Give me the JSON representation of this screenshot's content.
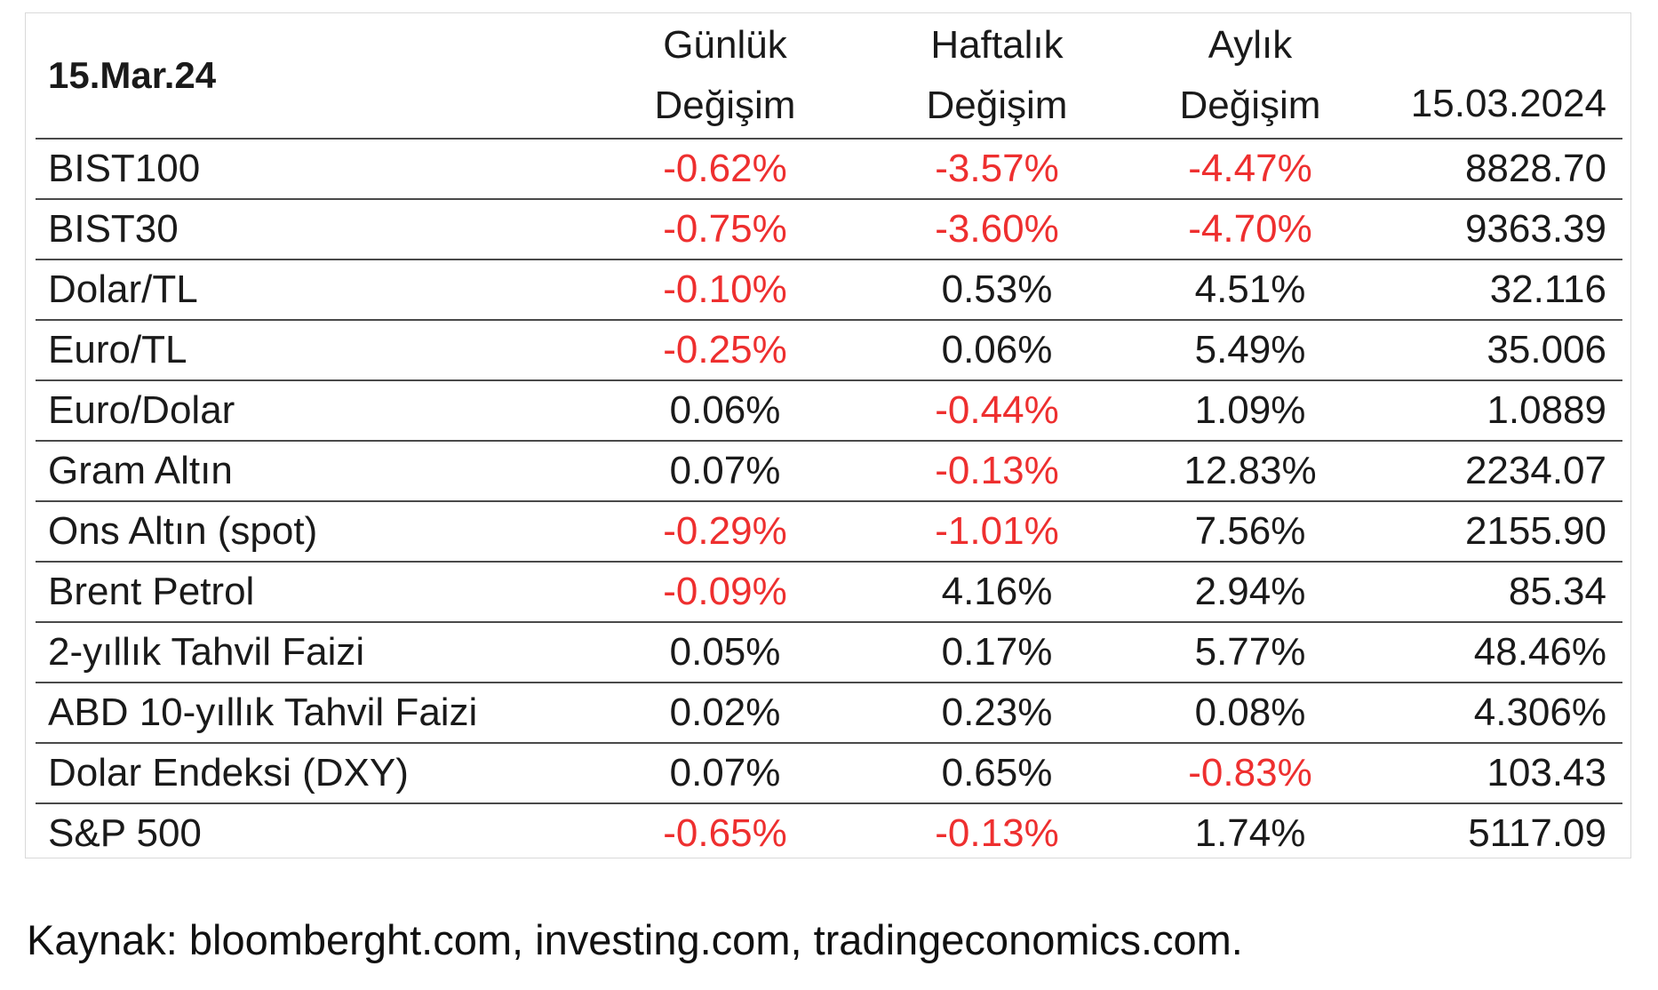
{
  "table": {
    "date_label": "15.Mar.24",
    "headers": {
      "daily": [
        "Günlük",
        "Değişim"
      ],
      "weekly": [
        "Haftalık",
        "Değişim"
      ],
      "monthly": [
        "Aylık",
        "Değişim"
      ],
      "value": "15.03.2024"
    },
    "rows": [
      {
        "name": "BIST100",
        "daily": "-0.62%",
        "weekly": "-3.57%",
        "monthly": "-4.47%",
        "value": "8828.70"
      },
      {
        "name": "BIST30",
        "daily": "-0.75%",
        "weekly": "-3.60%",
        "monthly": "-4.70%",
        "value": "9363.39"
      },
      {
        "name": "Dolar/TL",
        "daily": "-0.10%",
        "weekly": "0.53%",
        "monthly": "4.51%",
        "value": "32.116"
      },
      {
        "name": "Euro/TL",
        "daily": "-0.25%",
        "weekly": "0.06%",
        "monthly": "5.49%",
        "value": "35.006"
      },
      {
        "name": "Euro/Dolar",
        "daily": "0.06%",
        "weekly": "-0.44%",
        "monthly": "1.09%",
        "value": "1.0889"
      },
      {
        "name": "Gram Altın",
        "daily": "0.07%",
        "weekly": "-0.13%",
        "monthly": "12.83%",
        "value": "2234.07"
      },
      {
        "name": "Ons Altın (spot)",
        "daily": "-0.29%",
        "weekly": "-1.01%",
        "monthly": "7.56%",
        "value": "2155.90"
      },
      {
        "name": "Brent Petrol",
        "daily": "-0.09%",
        "weekly": "4.16%",
        "monthly": "2.94%",
        "value": "85.34"
      },
      {
        "name": "2-yıllık Tahvil Faizi",
        "daily": "0.05%",
        "weekly": "0.17%",
        "monthly": "5.77%",
        "value": "48.46%"
      },
      {
        "name": "ABD 10-yıllık Tahvil Faizi",
        "daily": "0.02%",
        "weekly": "0.23%",
        "monthly": "0.08%",
        "value": "4.306%"
      },
      {
        "name": "Dolar Endeksi (DXY)",
        "daily": "0.07%",
        "weekly": "0.65%",
        "monthly": "-0.83%",
        "value": "103.43"
      },
      {
        "name": "S&P 500",
        "daily": "-0.65%",
        "weekly": "-0.13%",
        "monthly": "1.74%",
        "value": "5117.09"
      }
    ]
  },
  "source_note": "Kaynak: bloomberght.com, investing.com, tradingeconomics.com.",
  "colors": {
    "negative": "#ee2f2f",
    "positive": "#1a1a1a",
    "rule": "#4a4a4a"
  },
  "chart_data": {
    "type": "table",
    "title": "15.Mar.24",
    "columns": [
      "",
      "Günlük Değişim",
      "Haftalık Değişim",
      "Aylık Değişim",
      "15.03.2024"
    ],
    "rows": [
      [
        "BIST100",
        "-0.62%",
        "-3.57%",
        "-4.47%",
        "8828.70"
      ],
      [
        "BIST30",
        "-0.75%",
        "-3.60%",
        "-4.70%",
        "9363.39"
      ],
      [
        "Dolar/TL",
        "-0.10%",
        "0.53%",
        "4.51%",
        "32.116"
      ],
      [
        "Euro/TL",
        "-0.25%",
        "0.06%",
        "5.49%",
        "35.006"
      ],
      [
        "Euro/Dolar",
        "0.06%",
        "-0.44%",
        "1.09%",
        "1.0889"
      ],
      [
        "Gram Altın",
        "0.07%",
        "-0.13%",
        "12.83%",
        "2234.07"
      ],
      [
        "Ons Altın (spot)",
        "-0.29%",
        "-1.01%",
        "7.56%",
        "2155.90"
      ],
      [
        "Brent Petrol",
        "-0.09%",
        "4.16%",
        "2.94%",
        "85.34"
      ],
      [
        "2-yıllık Tahvil Faizi",
        "0.05%",
        "0.17%",
        "5.77%",
        "48.46%"
      ],
      [
        "ABD 10-yıllık Tahvil Faizi",
        "0.02%",
        "0.23%",
        "0.08%",
        "4.306%"
      ],
      [
        "Dolar Endeksi (DXY)",
        "0.07%",
        "0.65%",
        "-0.83%",
        "103.43"
      ],
      [
        "S&P 500",
        "-0.65%",
        "-0.13%",
        "1.74%",
        "5117.09"
      ]
    ]
  }
}
